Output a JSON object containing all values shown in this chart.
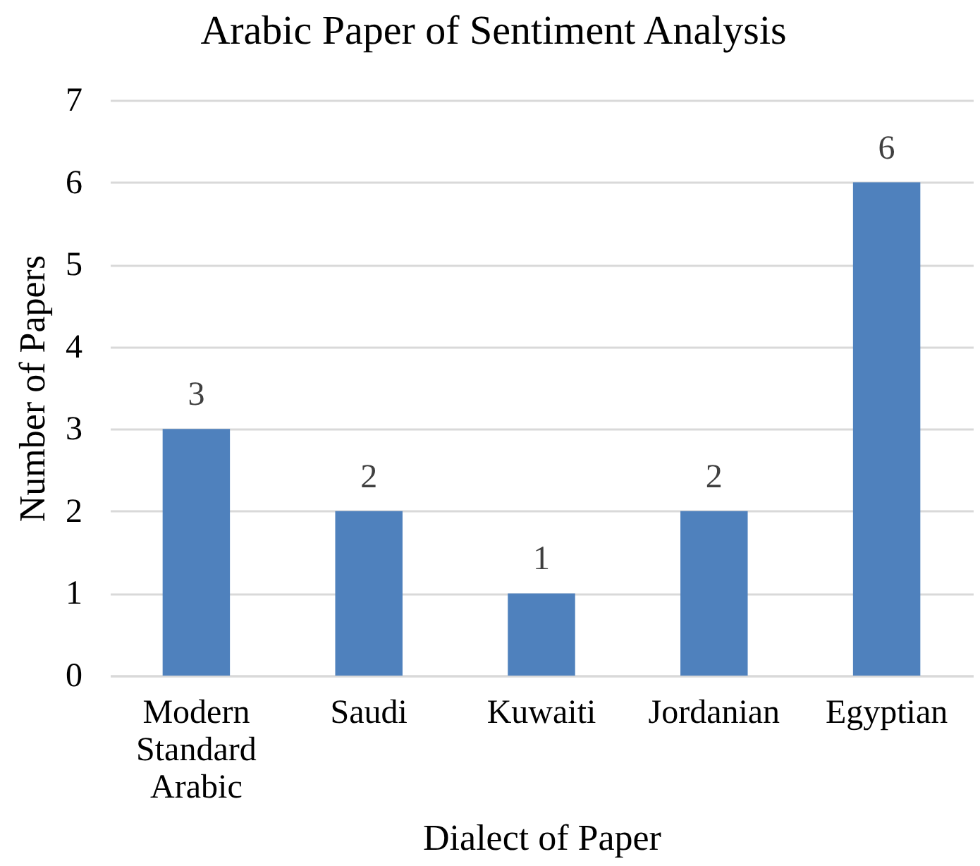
{
  "chart_data": {
    "type": "bar",
    "title": "Arabic Paper of Sentiment Analysis",
    "xlabel": "Dialect of Paper",
    "ylabel": "Number of Papers",
    "categories": [
      "Modern Standard Arabic",
      "Saudi",
      "Kuwaiti",
      "Jordanian",
      "Egyptian"
    ],
    "values": [
      3,
      2,
      1,
      2,
      6
    ],
    "color": "#4f81bd",
    "ylim": [
      0,
      7
    ],
    "yticks": [
      0,
      1,
      2,
      3,
      4,
      5,
      6,
      7
    ],
    "grid": "y",
    "data_labels": true
  }
}
